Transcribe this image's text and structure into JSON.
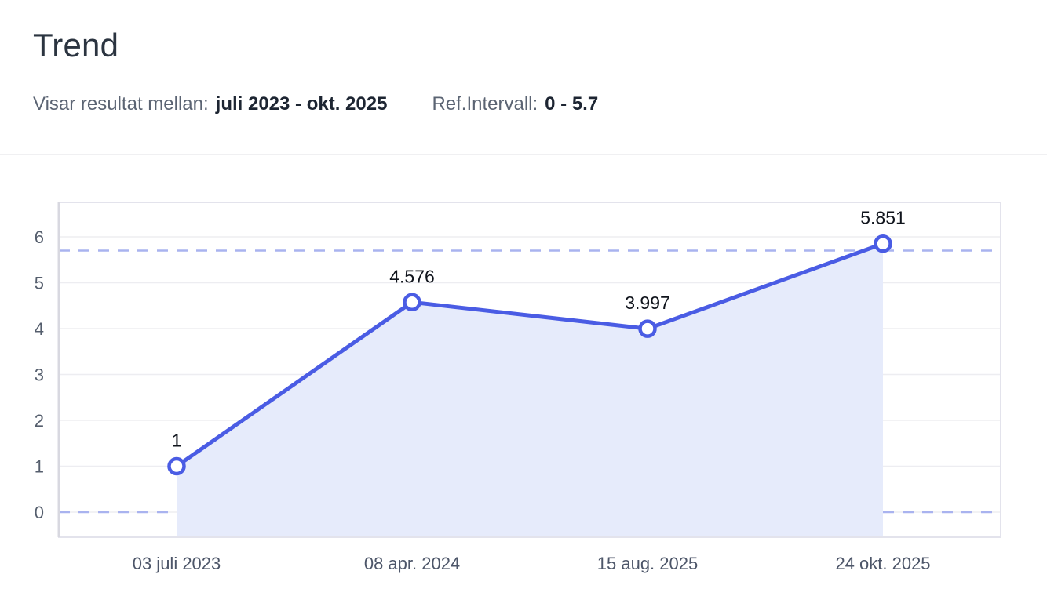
{
  "header": {
    "title": "Trend",
    "range_label": "Visar resultat mellan:",
    "range_value": "juli 2023 - okt. 2025",
    "ref_label": "Ref.Intervall:",
    "ref_value": "0 - 5.7"
  },
  "colors": {
    "line": "#4a5ce4",
    "marker_fill": "#ffffff",
    "area_fill": "#e6ebfb",
    "ref_dash": "#a9b3ef",
    "grid": "#ededf1",
    "plot_border": "#e3e3ec",
    "axis_left": "#d8d8e0",
    "point_label": "#10141c",
    "y_tick": "#555e6d",
    "x_tick": "#4d5669"
  },
  "chart_data": {
    "type": "line",
    "title": "Trend",
    "x": [
      "03 juli 2023",
      "08 apr. 2024",
      "15 aug. 2025",
      "24 okt. 2025"
    ],
    "values": [
      1,
      4.576,
      3.997,
      5.851
    ],
    "point_labels": [
      "1",
      "4.576",
      "3.997",
      "5.851"
    ],
    "y_ticks": [
      0,
      1,
      2,
      3,
      4,
      5,
      6
    ],
    "ylim": [
      -0.55,
      6.75
    ],
    "ref_interval": [
      0,
      5.7
    ],
    "ref_interval_label": "0 - 5.7",
    "area_fill": true,
    "grid": true,
    "legend": false,
    "xlabel": "",
    "ylabel": ""
  }
}
